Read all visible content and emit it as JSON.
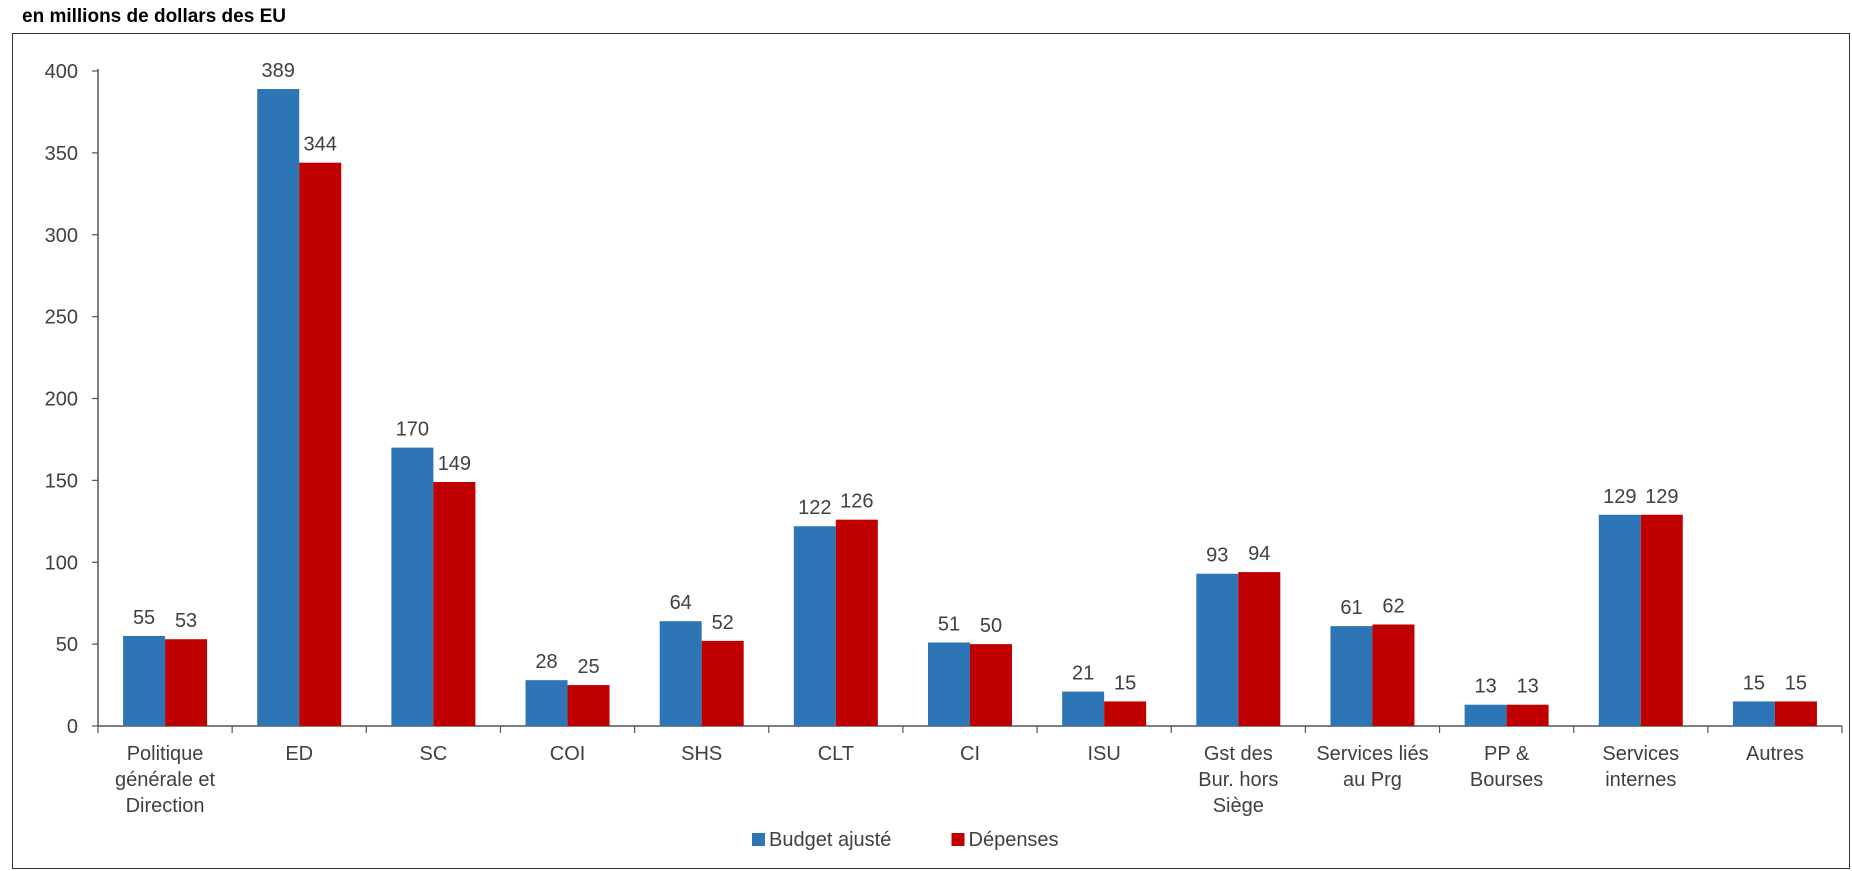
{
  "subtitle": "en millions de dollars des EU",
  "colors": {
    "budget": "#2e75b6",
    "depenses": "#c00000",
    "axis": "#555555",
    "text": "#404040"
  },
  "chart_data": {
    "type": "bar",
    "title": "",
    "subtitle": "en millions de dollars des EU",
    "xlabel": "",
    "ylabel": "",
    "ylim": [
      0,
      400
    ],
    "yticks": [
      0,
      50,
      100,
      150,
      200,
      250,
      300,
      350,
      400
    ],
    "grid": false,
    "legend": "bottom-center",
    "categories": [
      [
        "Politique",
        "générale et",
        "Direction"
      ],
      [
        "ED"
      ],
      [
        "SC"
      ],
      [
        "COI"
      ],
      [
        "SHS"
      ],
      [
        "CLT"
      ],
      [
        "CI"
      ],
      [
        "ISU"
      ],
      [
        "Gst des",
        "Bur. hors",
        "Siège"
      ],
      [
        "Services liés",
        "au Prg"
      ],
      [
        "PP &",
        "Bourses"
      ],
      [
        "Services",
        "internes"
      ],
      [
        "Autres"
      ]
    ],
    "series": [
      {
        "name": "Budget ajusté",
        "color": "#2e75b6",
        "values": [
          55,
          389,
          170,
          28,
          64,
          122,
          51,
          21,
          93,
          61,
          13,
          129,
          15
        ]
      },
      {
        "name": "Dépenses",
        "color": "#c00000",
        "values": [
          53,
          344,
          149,
          25,
          52,
          126,
          50,
          15,
          94,
          62,
          13,
          129,
          15
        ]
      }
    ]
  }
}
